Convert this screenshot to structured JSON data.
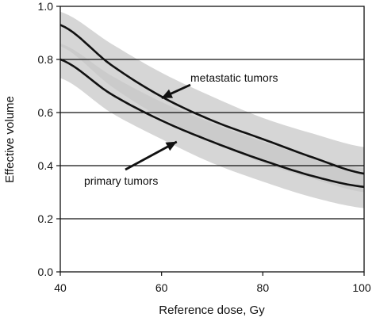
{
  "chart_data": {
    "type": "area",
    "title": "",
    "xlabel": "Reference dose, Gy",
    "ylabel": "Effective volume",
    "xlim": [
      40,
      100
    ],
    "ylim": [
      0.0,
      1.0
    ],
    "x_ticks": [
      40,
      60,
      80,
      100
    ],
    "x_tick_labels": [
      "40",
      "60",
      "80",
      "100"
    ],
    "y_ticks": [
      0.0,
      0.2,
      0.4,
      0.6,
      0.8,
      1.0
    ],
    "y_tick_labels": [
      "0.0",
      "0.2",
      "0.4",
      "0.6",
      "0.8",
      "1.0"
    ],
    "grid": "horizontal",
    "x": [
      40,
      50,
      60,
      70,
      80,
      90,
      100
    ],
    "series": [
      {
        "name": "metastatic tumors",
        "values": [
          0.93,
          0.78,
          0.66,
          0.57,
          0.5,
          0.43,
          0.37
        ],
        "band_upper": [
          0.98,
          0.86,
          0.75,
          0.66,
          0.58,
          0.52,
          0.47
        ],
        "band_lower": [
          0.85,
          0.7,
          0.58,
          0.49,
          0.41,
          0.35,
          0.3
        ]
      },
      {
        "name": "primary tumors",
        "values": [
          0.8,
          0.67,
          0.57,
          0.49,
          0.42,
          0.36,
          0.32
        ],
        "band_upper": [
          0.86,
          0.74,
          0.64,
          0.56,
          0.49,
          0.43,
          0.39
        ],
        "band_lower": [
          0.73,
          0.6,
          0.5,
          0.41,
          0.34,
          0.28,
          0.24
        ]
      }
    ],
    "annotations": [
      {
        "text": "metastatic tumors",
        "target_x": 60,
        "target_y": 0.655
      },
      {
        "text": "primary tumors",
        "target_x": 63,
        "target_y": 0.49
      }
    ],
    "colors": {
      "line": "#111111",
      "band": "#c6c6c6",
      "band_overlap": "#a8a8a8",
      "grid": "#111111",
      "background": "#ffffff"
    }
  }
}
